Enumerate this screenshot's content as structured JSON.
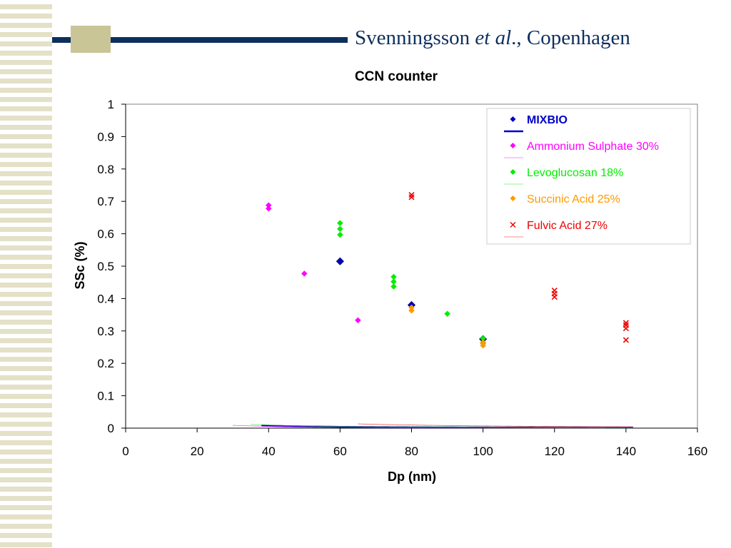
{
  "slide": {
    "author": "Svenningsson",
    "etal": "et al",
    "rest": "., Copenhagen"
  },
  "chart_data": {
    "type": "scatter",
    "title": "CCN counter",
    "xlabel": "Dp (nm)",
    "ylabel": "SSc (%)",
    "xlim": [
      0,
      160
    ],
    "ylim": [
      0,
      1
    ],
    "xticks": [
      0,
      20,
      40,
      60,
      80,
      100,
      120,
      140,
      160
    ],
    "yticks": [
      0,
      0.1,
      0.2,
      0.3,
      0.4,
      0.5,
      0.6,
      0.7,
      0.8,
      0.9,
      1
    ],
    "grid": false,
    "legend_position": "top-right",
    "series": [
      {
        "name": "MIXBIO",
        "color": "#0000cc",
        "marker": "diamond",
        "bold": true,
        "points": [
          [
            60,
            0.515
          ],
          [
            80,
            0.38
          ],
          [
            100,
            0.275
          ]
        ],
        "fit": {
          "k": 1.84,
          "n": 1.5,
          "xrange": [
            38,
            142
          ],
          "width": 2.5
        }
      },
      {
        "name": "Ammonium Sulphate 30%",
        "color": "#ff00ff",
        "marker": "diamond",
        "points": [
          [
            40,
            0.688
          ],
          [
            40,
            0.678
          ],
          [
            50,
            0.477
          ],
          [
            65,
            0.333
          ]
        ],
        "fit": {
          "k": 1.01,
          "n": 1.4,
          "xrange": [
            30,
            134
          ],
          "width": 0.8
        }
      },
      {
        "name": "Levoglucosan 18%",
        "color": "#00ee00",
        "marker": "diamond",
        "points": [
          [
            60,
            0.633
          ],
          [
            60,
            0.615
          ],
          [
            60,
            0.597
          ],
          [
            75,
            0.467
          ],
          [
            75,
            0.452
          ],
          [
            75,
            0.437
          ],
          [
            90,
            0.353
          ],
          [
            100,
            0.277
          ],
          [
            100,
            0.262
          ]
        ],
        "fit": {
          "k": 2.41,
          "n": 1.5,
          "xrange": [
            35,
            142
          ],
          "width": 0.8
        }
      },
      {
        "name": "Succinic Acid 25%",
        "color": "#ff9900",
        "marker": "diamond",
        "points": [
          [
            80,
            0.372
          ],
          [
            80,
            0.363
          ],
          [
            100,
            0.265
          ],
          [
            100,
            0.255
          ]
        ],
        "fit": null
      },
      {
        "name": "Fulvic Acid 27%",
        "color": "#ee0000",
        "marker": "x",
        "points": [
          [
            80,
            0.72
          ],
          [
            80,
            0.713
          ],
          [
            120,
            0.425
          ],
          [
            120,
            0.415
          ],
          [
            120,
            0.405
          ],
          [
            140,
            0.325
          ],
          [
            140,
            0.318
          ],
          [
            140,
            0.308
          ],
          [
            140,
            0.272
          ]
        ],
        "fit": {
          "k": 6.85,
          "n": 1.5,
          "xrange": [
            65,
            142
          ],
          "width": 0.8
        }
      }
    ]
  }
}
